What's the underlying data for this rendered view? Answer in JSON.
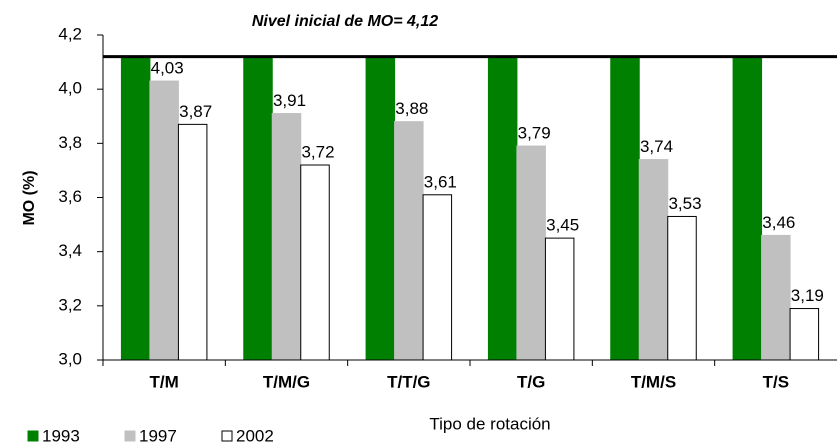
{
  "chart_data": {
    "type": "bar",
    "y_label": "MO (%)",
    "x_label": "Tipo de rotación",
    "reference_line": {
      "value": 4.12,
      "label": "Nivel inicial de MO= 4,12"
    },
    "categories": [
      "T/M",
      "T/M/G",
      "T/T/G",
      "T/G",
      "T/M/S",
      "T/S"
    ],
    "series": [
      {
        "name": "1993",
        "color": "#008000",
        "values": [
          4.12,
          4.12,
          4.12,
          4.12,
          4.12,
          4.12
        ]
      },
      {
        "name": "1997",
        "color": "#c0c0c0",
        "values": [
          4.03,
          3.91,
          3.88,
          3.79,
          3.74,
          3.46
        ],
        "value_labels": [
          "4,03",
          "3,91",
          "3,88",
          "3,79",
          "3,74",
          "3,46"
        ]
      },
      {
        "name": "2002",
        "color": "#ffffff",
        "values": [
          3.87,
          3.72,
          3.61,
          3.45,
          3.53,
          3.19
        ],
        "value_labels": [
          "3,87",
          "3,72",
          "3,61",
          "3,45",
          "3,53",
          "3,19"
        ]
      }
    ],
    "ylim": [
      3.0,
      4.2
    ],
    "yticks": [
      {
        "value": 3.0,
        "label": "3,0"
      },
      {
        "value": 3.2,
        "label": "3,2"
      },
      {
        "value": 3.4,
        "label": "3,4"
      },
      {
        "value": 3.6,
        "label": "3,6"
      },
      {
        "value": 3.8,
        "label": "3,8"
      },
      {
        "value": 4.0,
        "label": "4,0"
      },
      {
        "value": 4.2,
        "label": "4,2"
      }
    ],
    "legend": "bottom-left"
  }
}
